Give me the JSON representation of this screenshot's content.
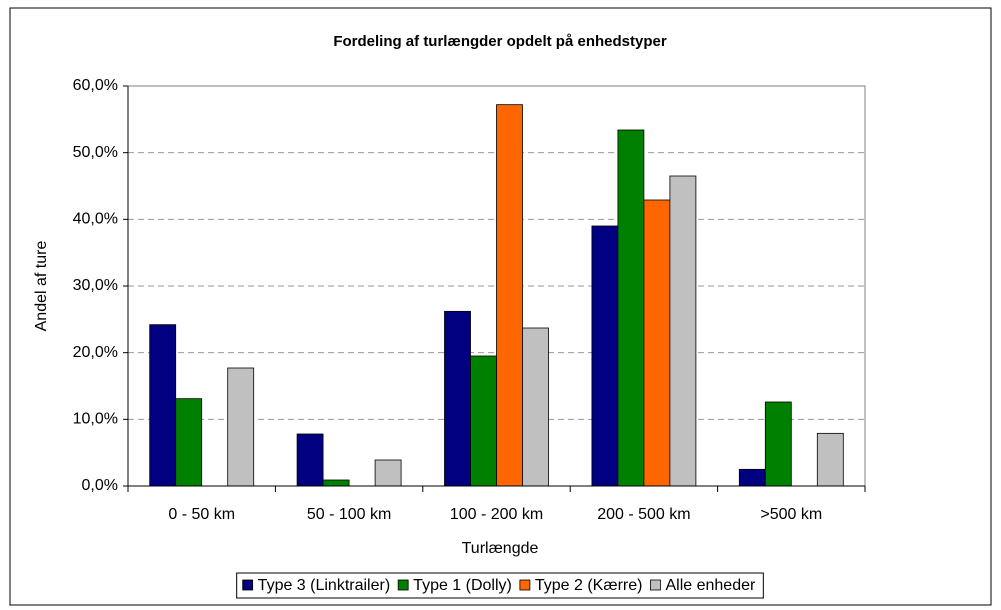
{
  "chart_data": {
    "type": "bar",
    "title": "Fordeling af turlængder opdelt på enhedstyper",
    "x_label": "Turlængde",
    "y_label": "Andel af ture",
    "categories": [
      "0 - 50 km",
      "50 - 100 km",
      "100 - 200 km",
      "200 - 500 km",
      ">500 km"
    ],
    "series": [
      {
        "name": "Type 3 (Linktrailer)",
        "color": "#000080",
        "values": [
          24.2,
          7.8,
          26.2,
          39.0,
          2.5
        ]
      },
      {
        "name": "Type 1 (Dolly)",
        "color": "#008000",
        "values": [
          13.1,
          0.9,
          19.5,
          53.4,
          12.6
        ]
      },
      {
        "name": "Type 2 (Kærre)",
        "color": "#ff6600",
        "values": [
          0,
          0,
          57.2,
          42.9,
          0
        ]
      },
      {
        "name": "Alle enheder",
        "color": "#c0c0c0",
        "values": [
          17.7,
          3.9,
          23.7,
          46.5,
          7.9
        ]
      }
    ],
    "ylim": [
      0,
      60
    ],
    "yticks": [
      {
        "value": 0,
        "label": "0,0%"
      },
      {
        "value": 10,
        "label": "10,0%"
      },
      {
        "value": 20,
        "label": "20,0%"
      },
      {
        "value": 30,
        "label": "30,0%"
      },
      {
        "value": 40,
        "label": "40,0%"
      },
      {
        "value": 50,
        "label": "50,0%"
      },
      {
        "value": 60,
        "label": "60,0%"
      }
    ],
    "grid": true,
    "legend": "bottom"
  }
}
